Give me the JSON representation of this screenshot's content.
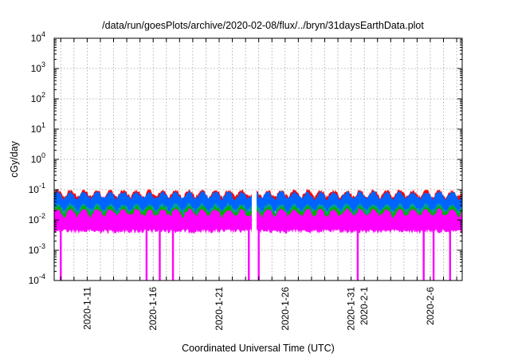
{
  "chart_data": {
    "type": "area",
    "title": "/data/run/goesPlots/archive/2020-02-08/flux/../bryn/31daysEarthData.plot",
    "xlabel": "Coordinated Universal Time (UTC)",
    "ylabel": "cGy/day",
    "y_scale": "log",
    "ylim": [
      0.0001,
      10000
    ],
    "xlim": [
      "2020-01-08T12:00",
      "2020-02-08T10:00"
    ],
    "grid": true,
    "legend": "none",
    "x_ticks": [
      "2020-1-11",
      "2020-1-16",
      "2020-1-21",
      "2020-1-26",
      "2020-1-31",
      "2020-2-1",
      "2020-2-6"
    ],
    "y_ticks": [
      {
        "value": 0.0001,
        "base": "10",
        "exp": "-4"
      },
      {
        "value": 0.001,
        "base": "10",
        "exp": "-3"
      },
      {
        "value": 0.01,
        "base": "10",
        "exp": "-2"
      },
      {
        "value": 0.1,
        "base": "10",
        "exp": "-1"
      },
      {
        "value": 1,
        "base": "10",
        "exp": "0"
      },
      {
        "value": 10,
        "base": "10",
        "exp": "1"
      },
      {
        "value": 100,
        "base": "10",
        "exp": "2"
      },
      {
        "value": 1000,
        "base": "10",
        "exp": "3"
      },
      {
        "value": 10000,
        "base": "10",
        "exp": "4"
      }
    ],
    "series": [
      {
        "color": "#ff0000",
        "typical_high": 0.085,
        "typical_low": 0.03
      },
      {
        "color": "#0064ff",
        "typical_high": 0.075,
        "typical_low": 0.02
      },
      {
        "color": "#00a0a0",
        "typical_high": 0.03,
        "typical_low": 0.012
      },
      {
        "color": "#00b000",
        "typical_high": 0.025,
        "typical_low": 0.01
      },
      {
        "color": "#ff00ff",
        "typical_high": 0.02,
        "typical_low": 0.005
      }
    ],
    "gap": {
      "from": "2020-01-23T12:00",
      "to": "2020-01-23T20:00"
    },
    "dropouts": [
      "2020-01-09T00:00",
      "2020-01-15T12:00",
      "2020-01-16T12:00",
      "2020-01-17T12:00",
      "2020-01-23T06:00",
      "2020-01-24T00:00",
      "2020-01-31T12:00",
      "2020-02-05T12:00",
      "2020-02-06T06:00",
      "2020-02-07T12:00"
    ]
  }
}
